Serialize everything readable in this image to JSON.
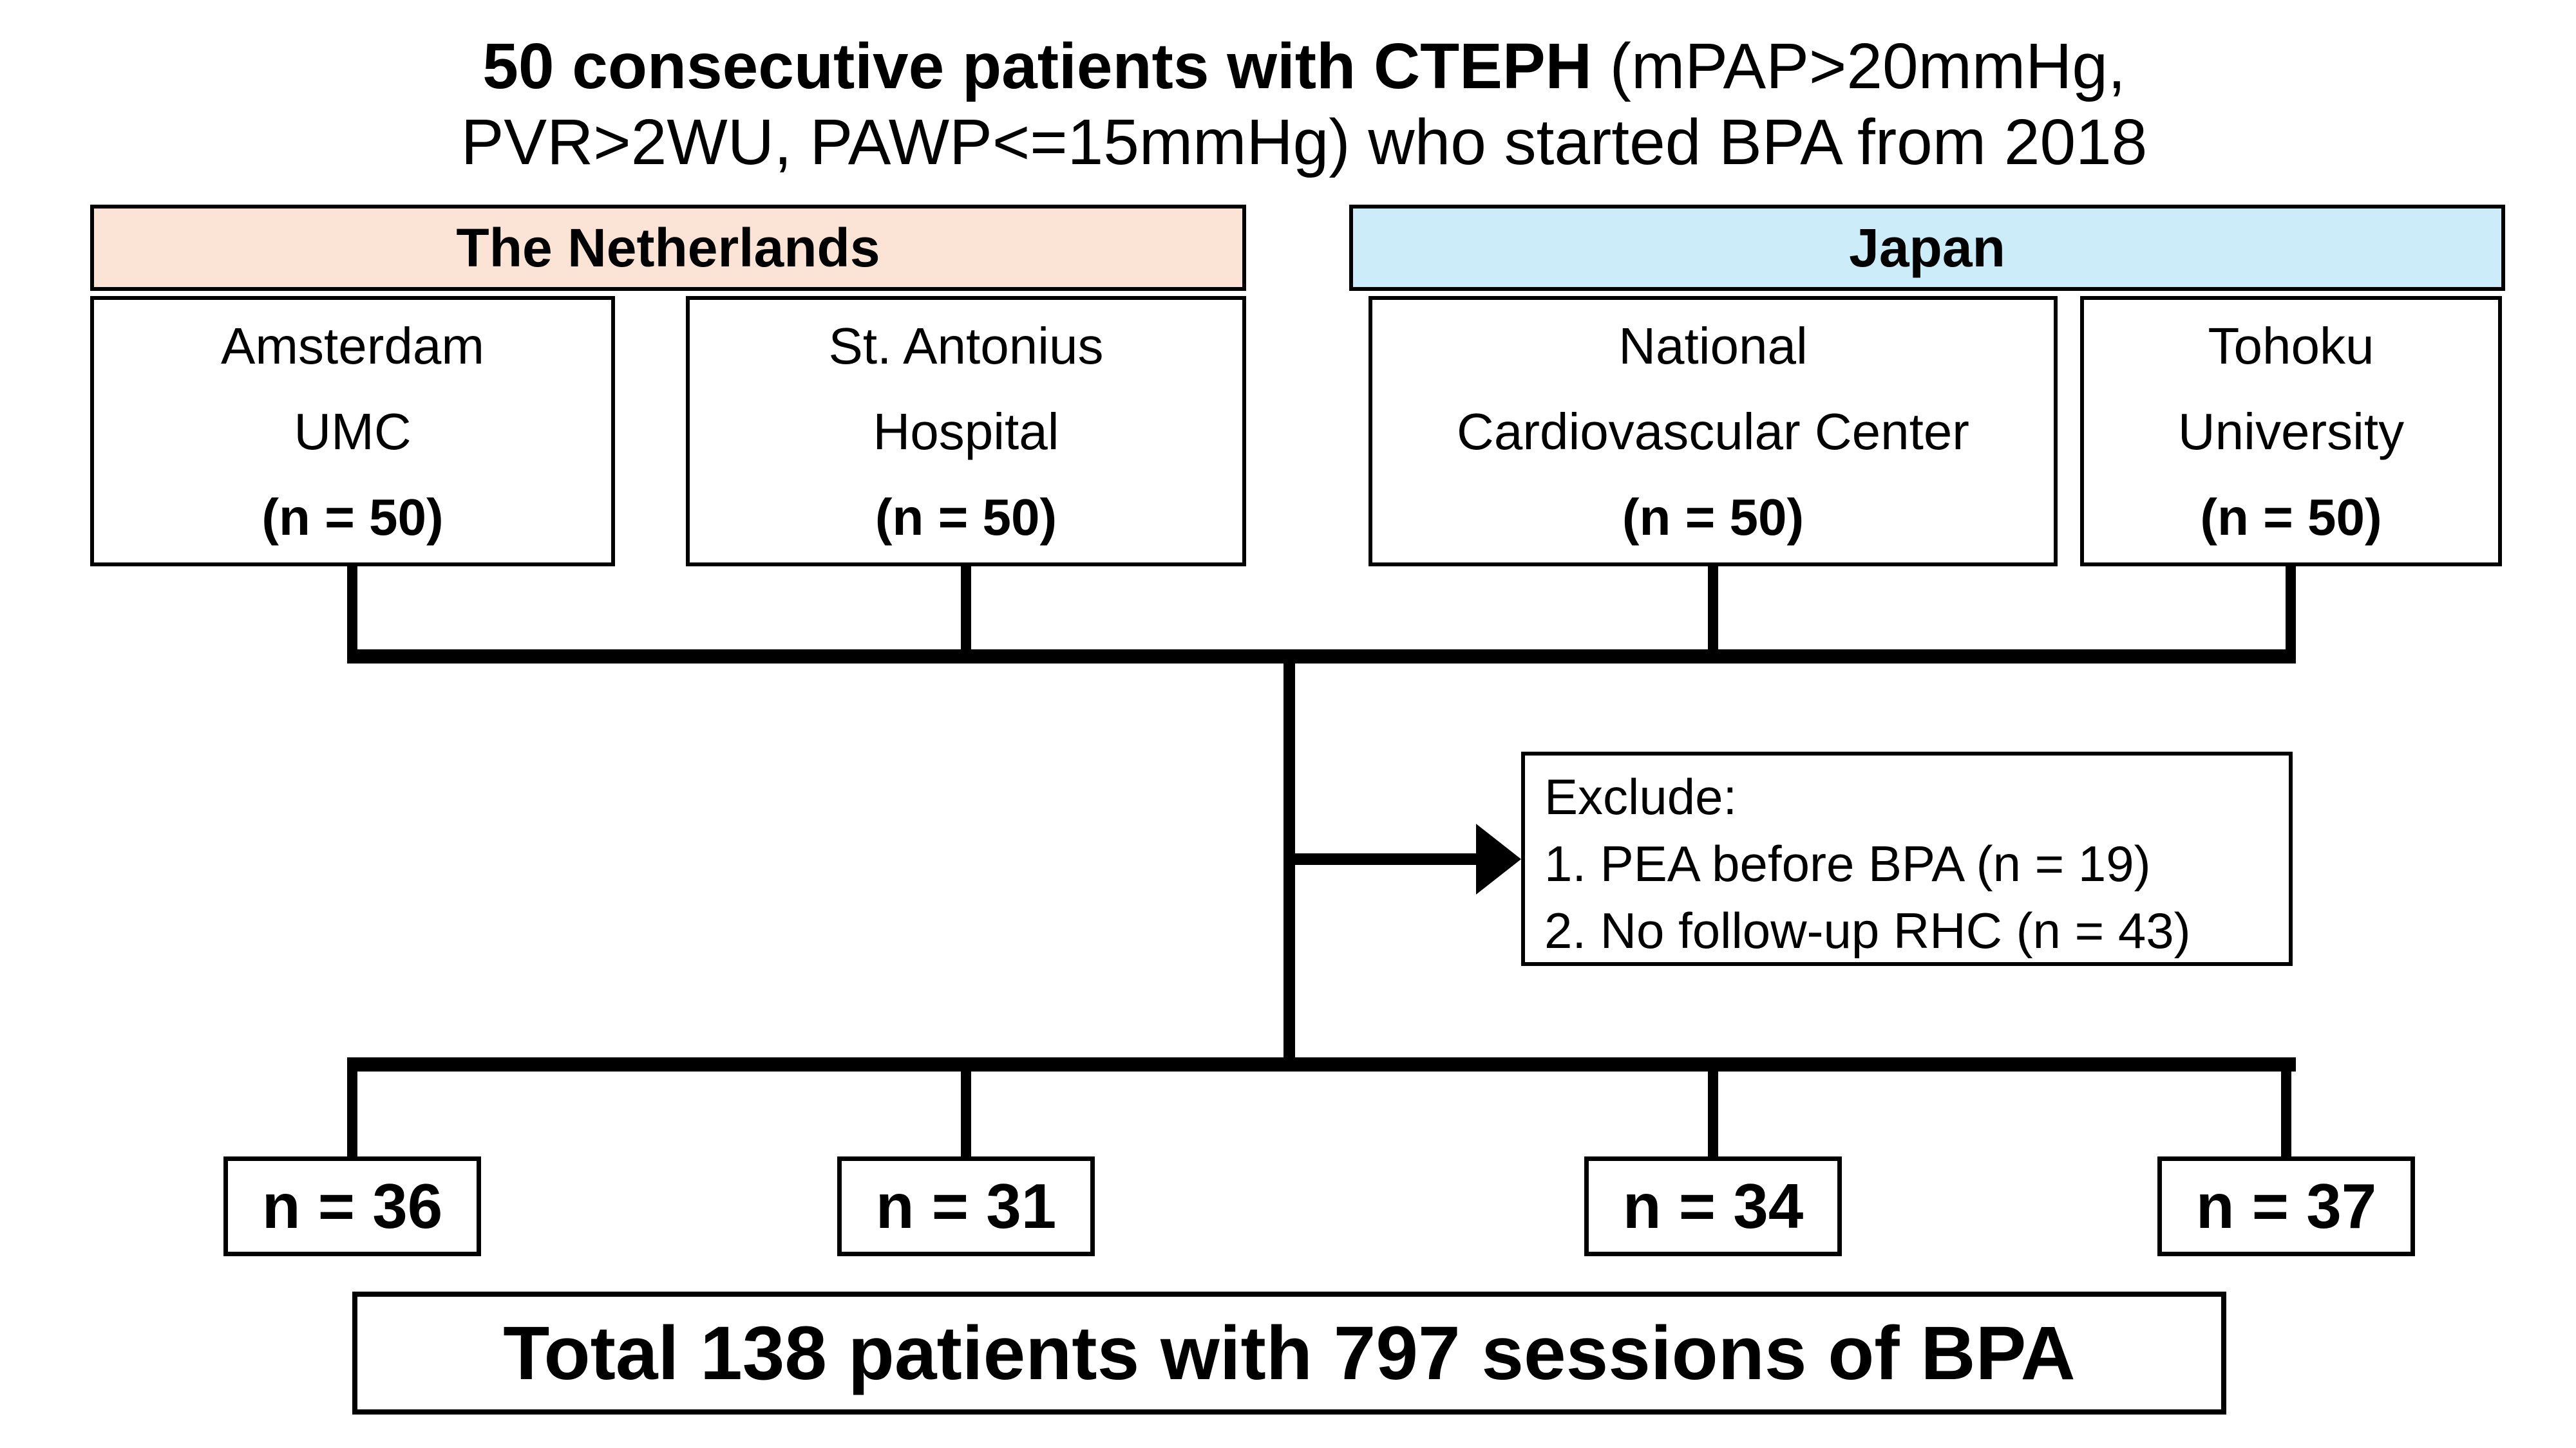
{
  "page": {
    "background": "#ffffff",
    "ink": "#000000"
  },
  "title": {
    "line1_bold": "50 consecutive patients with CTEPH",
    "line1_regular": " (mPAP>20mmHg,",
    "line2": "PVR>2WU, PAWP<=15mmHg) who started BPA from 2018"
  },
  "groups": [
    {
      "label": "The Netherlands",
      "fill": "#fbe3d6"
    },
    {
      "label": "Japan",
      "fill": "#cdecfa"
    }
  ],
  "hospitals": [
    {
      "name_line1": "Amsterdam",
      "name_line2": "UMC",
      "count": "(n = 50)"
    },
    {
      "name_line1": "St. Antonius",
      "name_line2": "Hospital",
      "count": "(n = 50)"
    },
    {
      "name_line1": "National",
      "name_line2": "Cardiovascular Center",
      "count": "(n = 50)"
    },
    {
      "name_line1": "Tohoku",
      "name_line2": "University",
      "count": "(n = 50)"
    }
  ],
  "exclude": {
    "heading": "Exclude:",
    "items": [
      "1. PEA before BPA (n = 19)",
      "2. No follow-up RHC (n = 43)"
    ]
  },
  "outcomes": [
    {
      "label": "n = 36"
    },
    {
      "label": "n = 31"
    },
    {
      "label": "n = 34"
    },
    {
      "label": "n = 37"
    }
  ],
  "total": {
    "label": "Total 138 patients with 797 sessions of BPA"
  }
}
